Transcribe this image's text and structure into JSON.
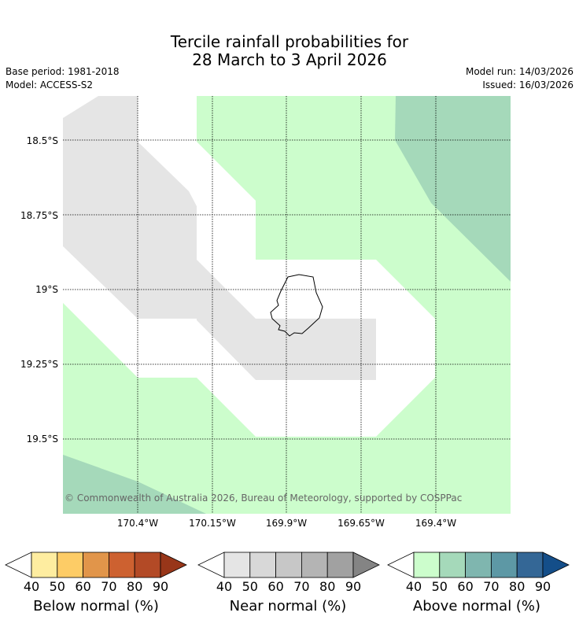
{
  "title": {
    "line1": "Tercile rainfall probabilities for",
    "line2": "28 March to 3 April 2026"
  },
  "meta": {
    "base_period": "Base period: 1981-2018",
    "model": "Model: ACCESS-S2",
    "model_run": "Model run: 14/03/2026",
    "issued": "Issued: 16/03/2026"
  },
  "map": {
    "lat_labels": [
      "18.5°S",
      "18.75°S",
      "19°S",
      "19.25°S",
      "19.5°S"
    ],
    "lon_labels": [
      "170.4°W",
      "170.15°W",
      "169.9°W",
      "169.65°W",
      "169.4°W"
    ],
    "copyright": "© Commonwealth of Australia 2026, Bureau of Meteorology, supported by COSPPac"
  },
  "colorbars": [
    {
      "label": "Below normal (%)",
      "ticks": [
        "40",
        "50",
        "60",
        "70",
        "80",
        "90"
      ],
      "colors": [
        "#ffffff",
        "#feeda0",
        "#fdcc66",
        "#e1954a",
        "#cd6130",
        "#b34a26",
        "#983619"
      ]
    },
    {
      "label": "Near normal (%)",
      "ticks": [
        "40",
        "50",
        "60",
        "70",
        "80",
        "90"
      ],
      "colors": [
        "#ffffff",
        "#e5e5e5",
        "#d8d8d8",
        "#c7c7c7",
        "#b4b4b4",
        "#a1a1a1",
        "#848484"
      ]
    },
    {
      "label": "Above normal (%)",
      "ticks": [
        "40",
        "50",
        "60",
        "70",
        "80",
        "90"
      ],
      "colors": [
        "#ffffff",
        "#ccfdcc",
        "#a5d9ba",
        "#7fb6af",
        "#5d98a5",
        "#346796",
        "#144e89"
      ]
    }
  ]
}
